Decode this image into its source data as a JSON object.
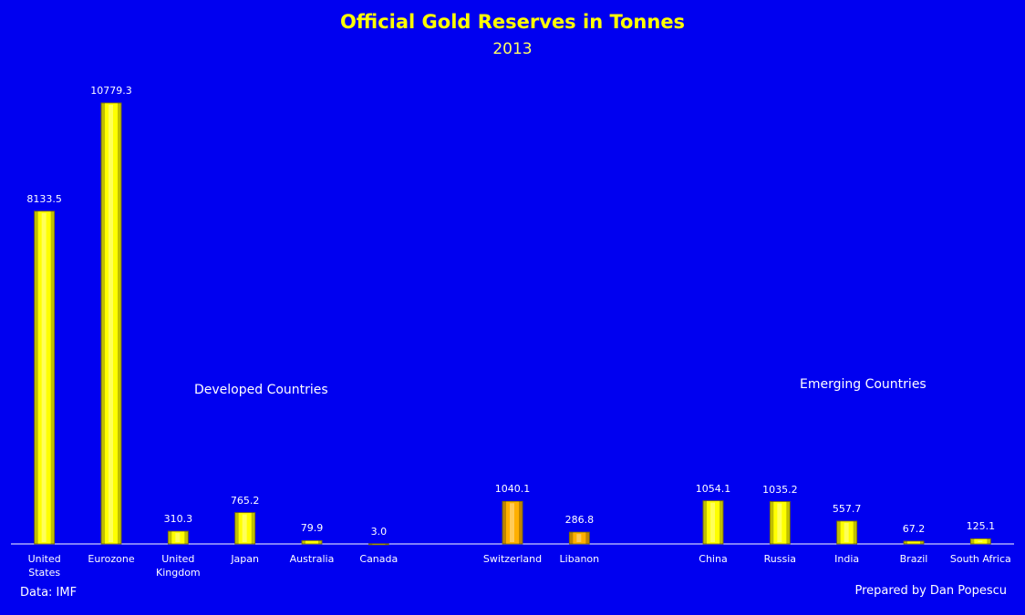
{
  "chart_data": {
    "type": "bar",
    "title": "Official Gold Reserves in Tonnes",
    "subtitle": "2013",
    "categories": [
      "United States",
      "Eurozone",
      "United Kingdom",
      "Japan",
      "Australia",
      "Canada",
      null,
      "Switzerland",
      "Libanon",
      null,
      "China",
      "Russia",
      "India",
      "Brazil",
      "South Africa"
    ],
    "values": [
      8133.5,
      10779.3,
      310.3,
      765.2,
      79.9,
      3.0,
      null,
      1040.1,
      286.8,
      null,
      1054.1,
      1035.2,
      557.7,
      67.2,
      125.1
    ],
    "value_labels": [
      "8133.5",
      "10779.3",
      "310.3",
      "765.2",
      "79.9",
      "3.0",
      null,
      "1040.1",
      "286.8",
      null,
      "1054.1",
      "1035.2",
      "557.7",
      "67.2",
      "125.1"
    ],
    "colors": [
      "#ffff00",
      "#ffff00",
      "#ffff00",
      "#ffff00",
      "#ffff00",
      "#ffff00",
      null,
      "#ffb000",
      "#ffb000",
      null,
      "#ffff00",
      "#ffff00",
      "#ffff00",
      "#ffff00",
      "#ffff00"
    ],
    "annotations": [
      "Developed Countries",
      "Emerging Countries"
    ],
    "source": "Data: IMF",
    "credit": "Prepared by Dan Popescu"
  }
}
